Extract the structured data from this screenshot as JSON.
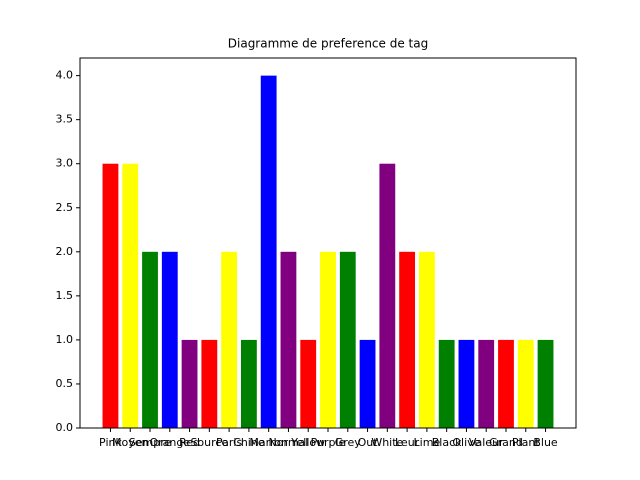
{
  "chart_data": {
    "type": "bar",
    "title": "Diagramme de preference de tag",
    "categories": [
      "Pink",
      "Moyen",
      "Sempre",
      "Orange",
      "Red",
      "Source",
      "Paris",
      "Chine",
      "Marron",
      "Normal",
      "Yellow",
      "Purple",
      "Grey",
      "Out",
      "White",
      "Leur",
      "Lime",
      "Black",
      "Olive",
      "Valeur",
      "Grand",
      "Plant",
      "Blue"
    ],
    "values": [
      3,
      3,
      2,
      2,
      1,
      1,
      2,
      1,
      4,
      2,
      1,
      2,
      2,
      1,
      3,
      2,
      2,
      1,
      1,
      1,
      1,
      1,
      1
    ],
    "colors": [
      "#ff0000",
      "#ffff00",
      "#008000",
      "#0000ff",
      "#800080",
      "#ff0000",
      "#ffff00",
      "#008000",
      "#0000ff",
      "#800080",
      "#ff0000",
      "#ffff00",
      "#008000",
      "#0000ff",
      "#800080",
      "#ff0000",
      "#ffff00",
      "#008000",
      "#0000ff",
      "#800080",
      "#ff0000",
      "#ffff00",
      "#008000"
    ],
    "ylim": [
      0,
      4.2
    ],
    "yticks": [
      {
        "value": 0,
        "label": "0.0"
      },
      {
        "value": 0.5,
        "label": "0.5"
      },
      {
        "value": 1,
        "label": "1.0"
      },
      {
        "value": 1.5,
        "label": "1.5"
      },
      {
        "value": 2,
        "label": "2.0"
      },
      {
        "value": 2.5,
        "label": "2.5"
      },
      {
        "value": 3,
        "label": "3.0"
      },
      {
        "value": 3.5,
        "label": "3.5"
      },
      {
        "value": 4,
        "label": "4.0"
      }
    ],
    "grid": false
  }
}
